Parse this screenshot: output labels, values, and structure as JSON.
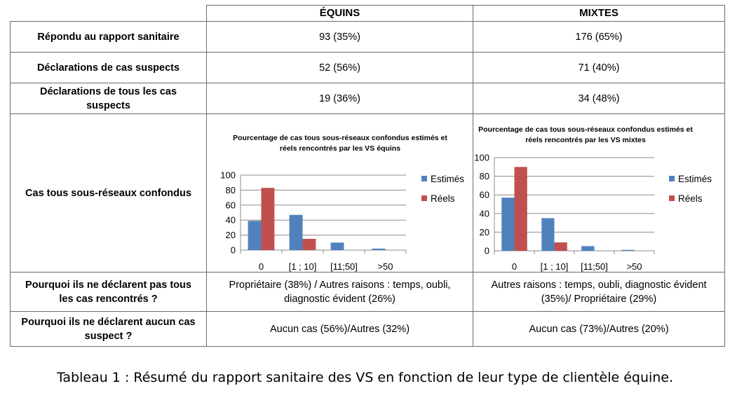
{
  "table": {
    "headers": [
      "ÉQUINS",
      "MIXTES"
    ],
    "rows": [
      {
        "label": "Répondu au rapport sanitaire",
        "equins": "93 (35%)",
        "mixtes": "176 (65%)"
      },
      {
        "label": "Déclarations de cas suspects",
        "equins": "52 (56%)",
        "mixtes": "71 (40%)"
      },
      {
        "label": "Déclarations de tous les cas suspects",
        "equins": "19 (36%)",
        "mixtes": "34 (48%)"
      },
      {
        "label": "Cas tous sous-réseaux confondus"
      },
      {
        "label": "Pourquoi ils ne déclarent pas tous les cas rencontrés ?",
        "equins": "Propriétaire (38%) / Autres raisons : temps, oubli, diagnostic évident (26%)",
        "mixtes": "Autres raisons : temps, oubli, diagnostic évident (35%)/ Propriétaire (29%)"
      },
      {
        "label": "Pourquoi ils ne déclarent aucun cas suspect ?",
        "equins": "Aucun cas (56%)/Autres (32%)",
        "mixtes": "Aucun cas (73%)/Autres (20%)"
      }
    ]
  },
  "chart_data": [
    {
      "type": "bar",
      "title_lines": [
        "Pourcentage de cas tous sous-réseaux confondus estimés et",
        "réels  rencontrés  par les VS équins"
      ],
      "categories": [
        "0",
        "[1 ; 10]",
        "[11;50]",
        ">50"
      ],
      "series": [
        {
          "name": "Estimés",
          "color": "#4f81bd",
          "values": [
            39,
            47,
            10,
            2
          ]
        },
        {
          "name": "Réels",
          "color": "#c0504d",
          "values": [
            83,
            15,
            0,
            0
          ]
        }
      ],
      "ylim": [
        0,
        100
      ],
      "yticks": [
        "0",
        "20",
        "40",
        "60",
        "80",
        "100"
      ],
      "grid": true,
      "legend": "right"
    },
    {
      "type": "bar",
      "title_lines": [
        "Pourcentage de cas tous sous-réseaux confondus estimés et",
        "réels  rencontrés  par les VS mixtes"
      ],
      "categories": [
        "0",
        "[1 ; 10]",
        "[11;50]",
        ">50"
      ],
      "series": [
        {
          "name": "Estimés",
          "color": "#4f81bd",
          "values": [
            57,
            35,
            5,
            1
          ]
        },
        {
          "name": "Réels",
          "color": "#c0504d",
          "values": [
            90,
            9,
            0,
            0
          ]
        }
      ],
      "ylim": [
        0,
        100
      ],
      "yticks": [
        "0",
        "20",
        "40",
        "60",
        "80",
        "100"
      ],
      "grid": true,
      "legend": "right"
    }
  ],
  "caption": "Tableau 1 : Résumé du rapport sanitaire des VS en fonction de leur type de clientèle équine."
}
